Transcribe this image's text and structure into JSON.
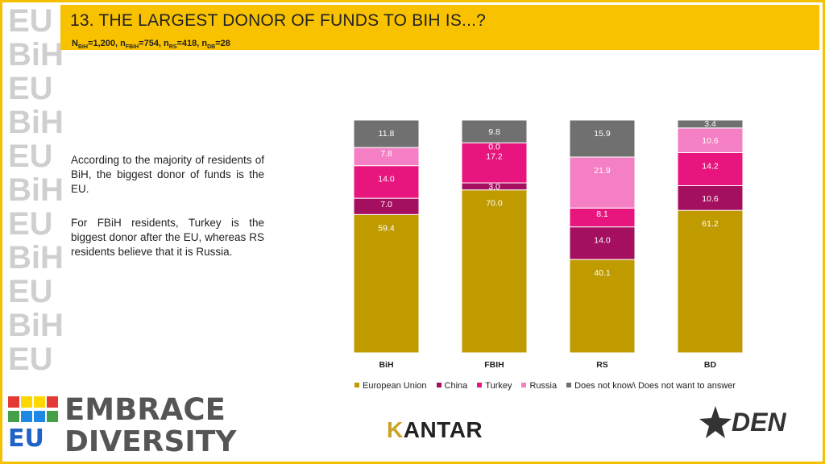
{
  "header": {
    "title": "13. THE LARGEST DONOR OF FUNDS TO BIH IS...?",
    "sample": {
      "n_bih": "N",
      "sub_bih": "BiH",
      "v_bih": "=1,200, n",
      "sub_fbih": "FBiH",
      "v_fbih": "=754, n",
      "sub_rs": "RS",
      "v_rs": "=418, n",
      "sub_db": "DB",
      "v_db": "=28"
    }
  },
  "text": {
    "p1": "According to the majority of residents of BiH, the biggest donor of funds is the EU.",
    "p2": "For FBiH residents, Turkey is the biggest donor after the EU, whereas RS residents believe that it is Russia."
  },
  "chart_data": {
    "type": "bar",
    "stacked": true,
    "categories": [
      "BiH",
      "FBIH",
      "RS",
      "BD"
    ],
    "series": [
      {
        "name": "European Union",
        "color": "#bf9b00",
        "values": [
          59.4,
          70.0,
          40.1,
          61.2
        ],
        "labels": [
          "59.4",
          "70.0",
          "40.1",
          "61.2"
        ]
      },
      {
        "name": "China",
        "color": "#a50f5f",
        "values": [
          7.0,
          3.0,
          14.0,
          10.6
        ],
        "labels": [
          "7.0",
          "3.0",
          "14.0",
          "10.6"
        ]
      },
      {
        "name": "Turkey",
        "color": "#e8157f",
        "values": [
          14.0,
          17.2,
          8.1,
          14.2
        ],
        "labels": [
          "14.0",
          "17.2",
          "8.1",
          "14.2"
        ]
      },
      {
        "name": "Russia",
        "color": "#f47fc4",
        "values": [
          7.8,
          0.0,
          21.9,
          10.6
        ],
        "labels": [
          "7.8",
          "0.0",
          "21.9",
          "10.6"
        ]
      },
      {
        "name": "Does not know\\ Does not want to answer",
        "color": "#707070",
        "values": [
          11.8,
          9.8,
          15.9,
          3.4
        ],
        "labels": [
          "11.8",
          "9.8",
          "15.9",
          "3.4"
        ]
      }
    ],
    "legend_position": "bottom",
    "ylim": [
      0,
      100
    ],
    "grid": false
  },
  "logos": {
    "embrace_line1": "EMBRACE",
    "embrace_line2": "DIVERSITY",
    "bih": "BiH",
    "eu": "EU",
    "kantar_k": "K",
    "kantar_rest": "ANTAR",
    "den": "DEN"
  }
}
